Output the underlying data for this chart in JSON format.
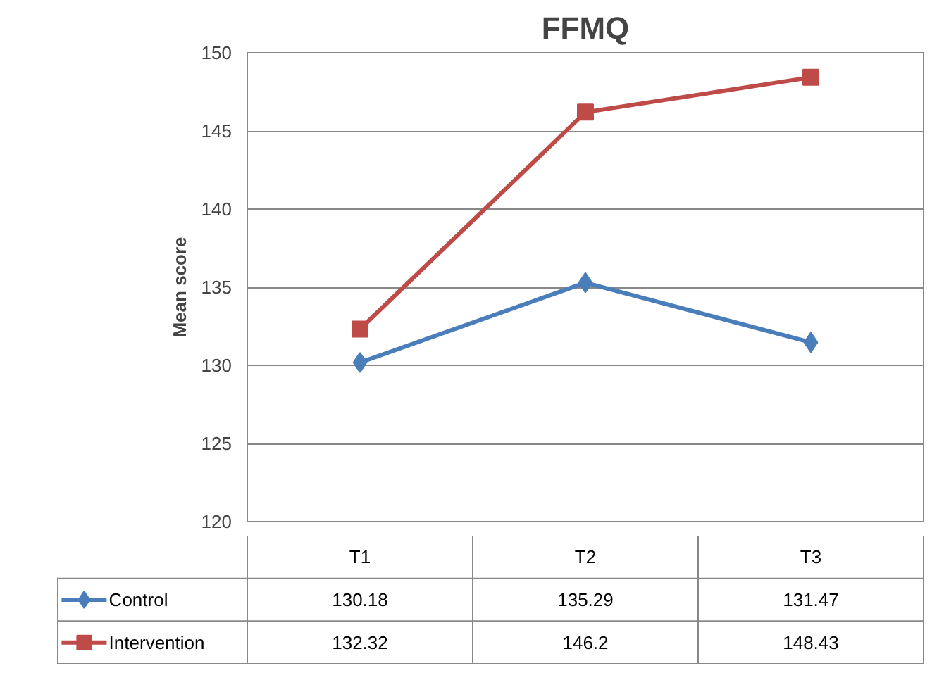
{
  "chart_data": {
    "type": "line",
    "title": "FFMQ",
    "ylabel": "Mean score",
    "categories": [
      "T1",
      "T2",
      "T3"
    ],
    "series": [
      {
        "name": "Control",
        "color": "#4a7ebb",
        "marker": "diamond",
        "values": [
          130.18,
          135.29,
          131.47
        ]
      },
      {
        "name": "Intervention",
        "color": "#be4b48",
        "marker": "square",
        "values": [
          132.32,
          146.2,
          148.43
        ]
      }
    ],
    "ylim": [
      120,
      150
    ],
    "yticks": [
      120,
      125,
      130,
      135,
      140,
      145,
      150
    ],
    "grid": "y",
    "legend": "bottom",
    "data_labels": true
  }
}
